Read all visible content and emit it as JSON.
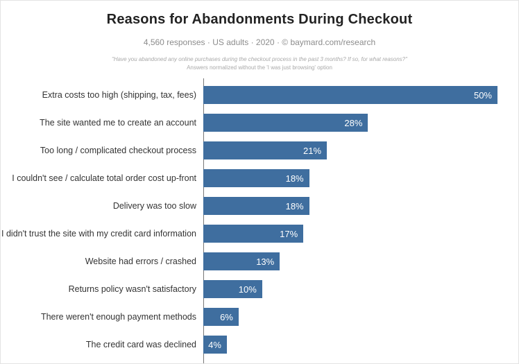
{
  "header": {
    "title": "Reasons for Abandonments During Checkout",
    "subtitle": "4,560 responses · US adults · 2020 · © baymard.com/research",
    "note_line1": "\"Have you abandoned any online purchases during the checkout process in the past 3 months? If so, for what reasons?\"",
    "note_line2": "Answers normalized without the 'I was just browsing' option"
  },
  "chart_data": {
    "type": "bar",
    "orientation": "horizontal",
    "title": "Reasons for Abandonments During Checkout",
    "categories": [
      "Extra costs too high (shipping, tax, fees)",
      "The site wanted me to create an account",
      "Too long / complicated checkout process",
      "I couldn't see / calculate total order cost up-front",
      "Delivery was too slow",
      "I didn't trust the site with my credit card information",
      "Website had errors / crashed",
      "Returns policy wasn't satisfactory",
      "There weren't enough payment methods",
      "The credit card was declined"
    ],
    "values": [
      50,
      28,
      21,
      18,
      18,
      17,
      13,
      10,
      6,
      4
    ],
    "value_labels": [
      "50%",
      "28%",
      "21%",
      "18%",
      "18%",
      "17%",
      "13%",
      "10%",
      "6%",
      "4%"
    ],
    "xlim": [
      0,
      50
    ],
    "bar_color": "#3f6e9f",
    "grid": false,
    "legend": false,
    "value_label_position": "inside-end"
  }
}
